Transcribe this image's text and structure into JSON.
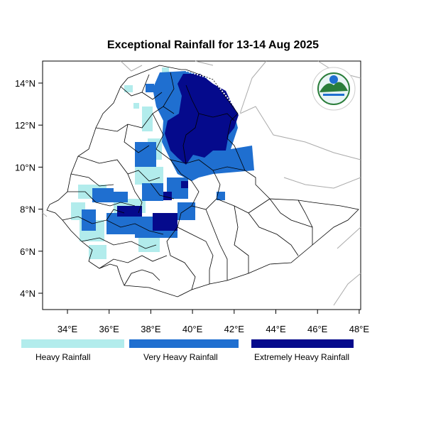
{
  "title": "Exceptional Rainfall for 13-14 Aug 2025",
  "axes": {
    "lon_ticks": [
      "34°E",
      "36°E",
      "38°E",
      "40°E",
      "42°E",
      "44°E",
      "46°E",
      "48°E"
    ],
    "lat_ticks": [
      "4°N",
      "6°N",
      "8°N",
      "10°N",
      "12°N",
      "14°N"
    ]
  },
  "legend": [
    {
      "label": "Heavy Rainfall",
      "color": "#b2ecec"
    },
    {
      "label": "Very Heavy Rainfall",
      "color": "#1f6fd0"
    },
    {
      "label": "Extremely Heavy Rainfall",
      "color": "#050a8c"
    }
  ],
  "logo": {
    "name": "ethiopian-meteorology-institute-logo"
  },
  "colors": {
    "border": "#000000",
    "neighbor_border": "#aaaaaa"
  }
}
